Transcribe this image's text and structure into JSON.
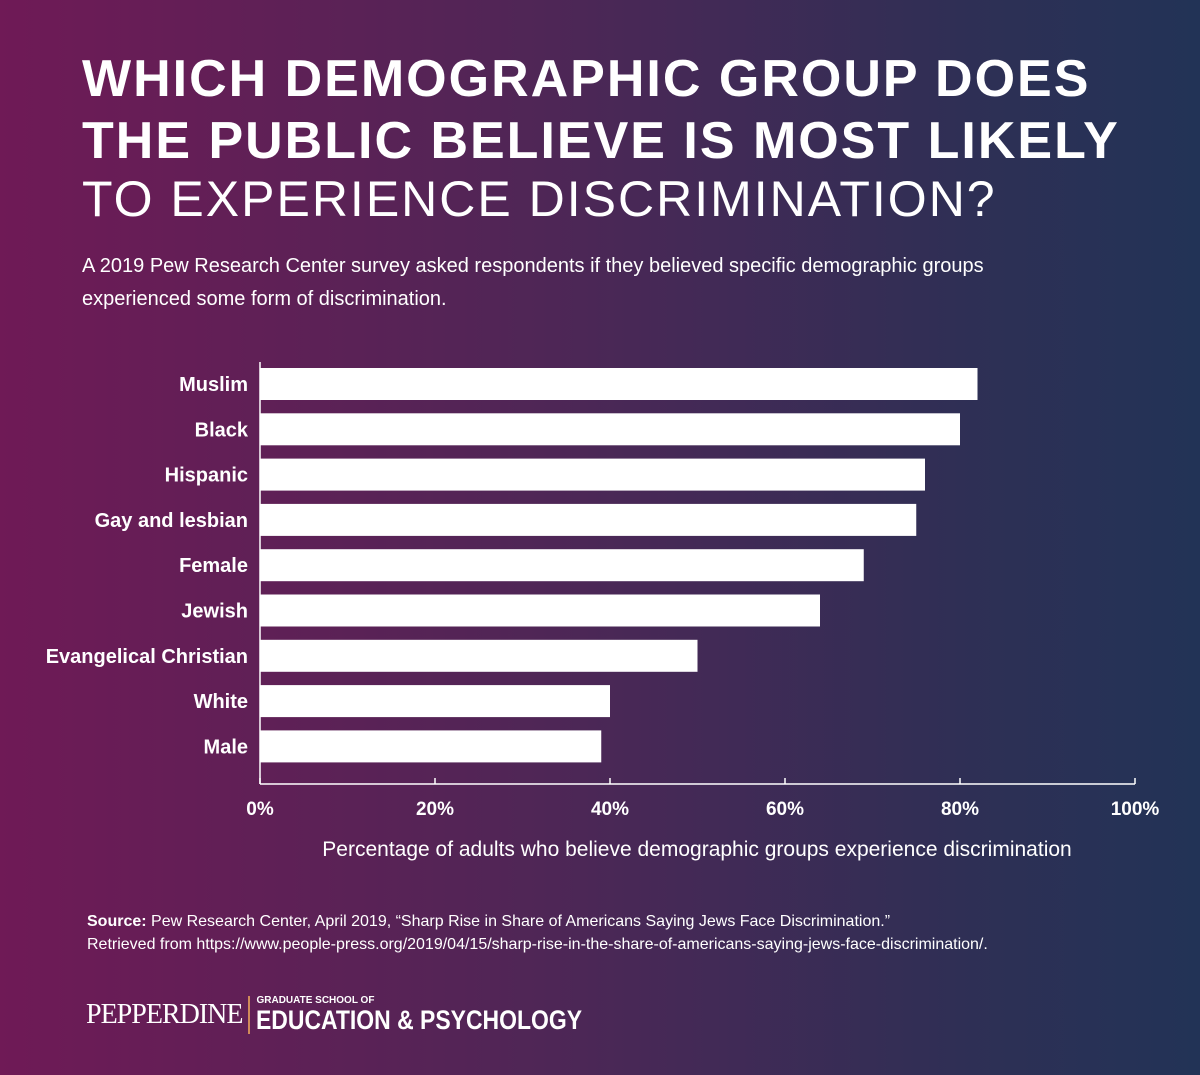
{
  "title_bold_line1": "WHICH DEMOGRAPHIC GROUP DOES",
  "title_bold_line2": "THE PUBLIC BELIEVE IS MOST LIKELY",
  "title_light": "TO EXPERIENCE DISCRIMINATION?",
  "subtitle": "A 2019 Pew Research Center survey asked respondents if they believed specific demographic groups experienced some form of discrimination.",
  "chart_data": {
    "type": "bar",
    "orientation": "horizontal",
    "categories": [
      "Muslim",
      "Black",
      "Hispanic",
      "Gay and lesbian",
      "Female",
      "Jewish",
      "Evangelical Christian",
      "White",
      "Male"
    ],
    "values": [
      82,
      80,
      76,
      75,
      69,
      64,
      50,
      40,
      39
    ],
    "xlabel": "Percentage of adults who believe demographic groups experience discrimination",
    "xlim": [
      0,
      100
    ],
    "xticks": [
      "0%",
      "20%",
      "40%",
      "60%",
      "80%",
      "100%"
    ],
    "grid": false,
    "bar_color": "#ffffff"
  },
  "source": {
    "label": "Source:",
    "text": " Pew Research Center, April 2019, “Sharp Rise in Share of Americans Saying Jews Face Discrimination.”",
    "line2": "Retrieved from https://www.people-press.org/2019/04/15/sharp-rise-in-the-share-of-americans-saying-jews-face-discrimination/."
  },
  "logo": {
    "name": "PEPPERDINE",
    "school_small": "GRADUATE SCHOOL OF",
    "school_big": "EDUCATION & PSYCHOLOGY"
  }
}
